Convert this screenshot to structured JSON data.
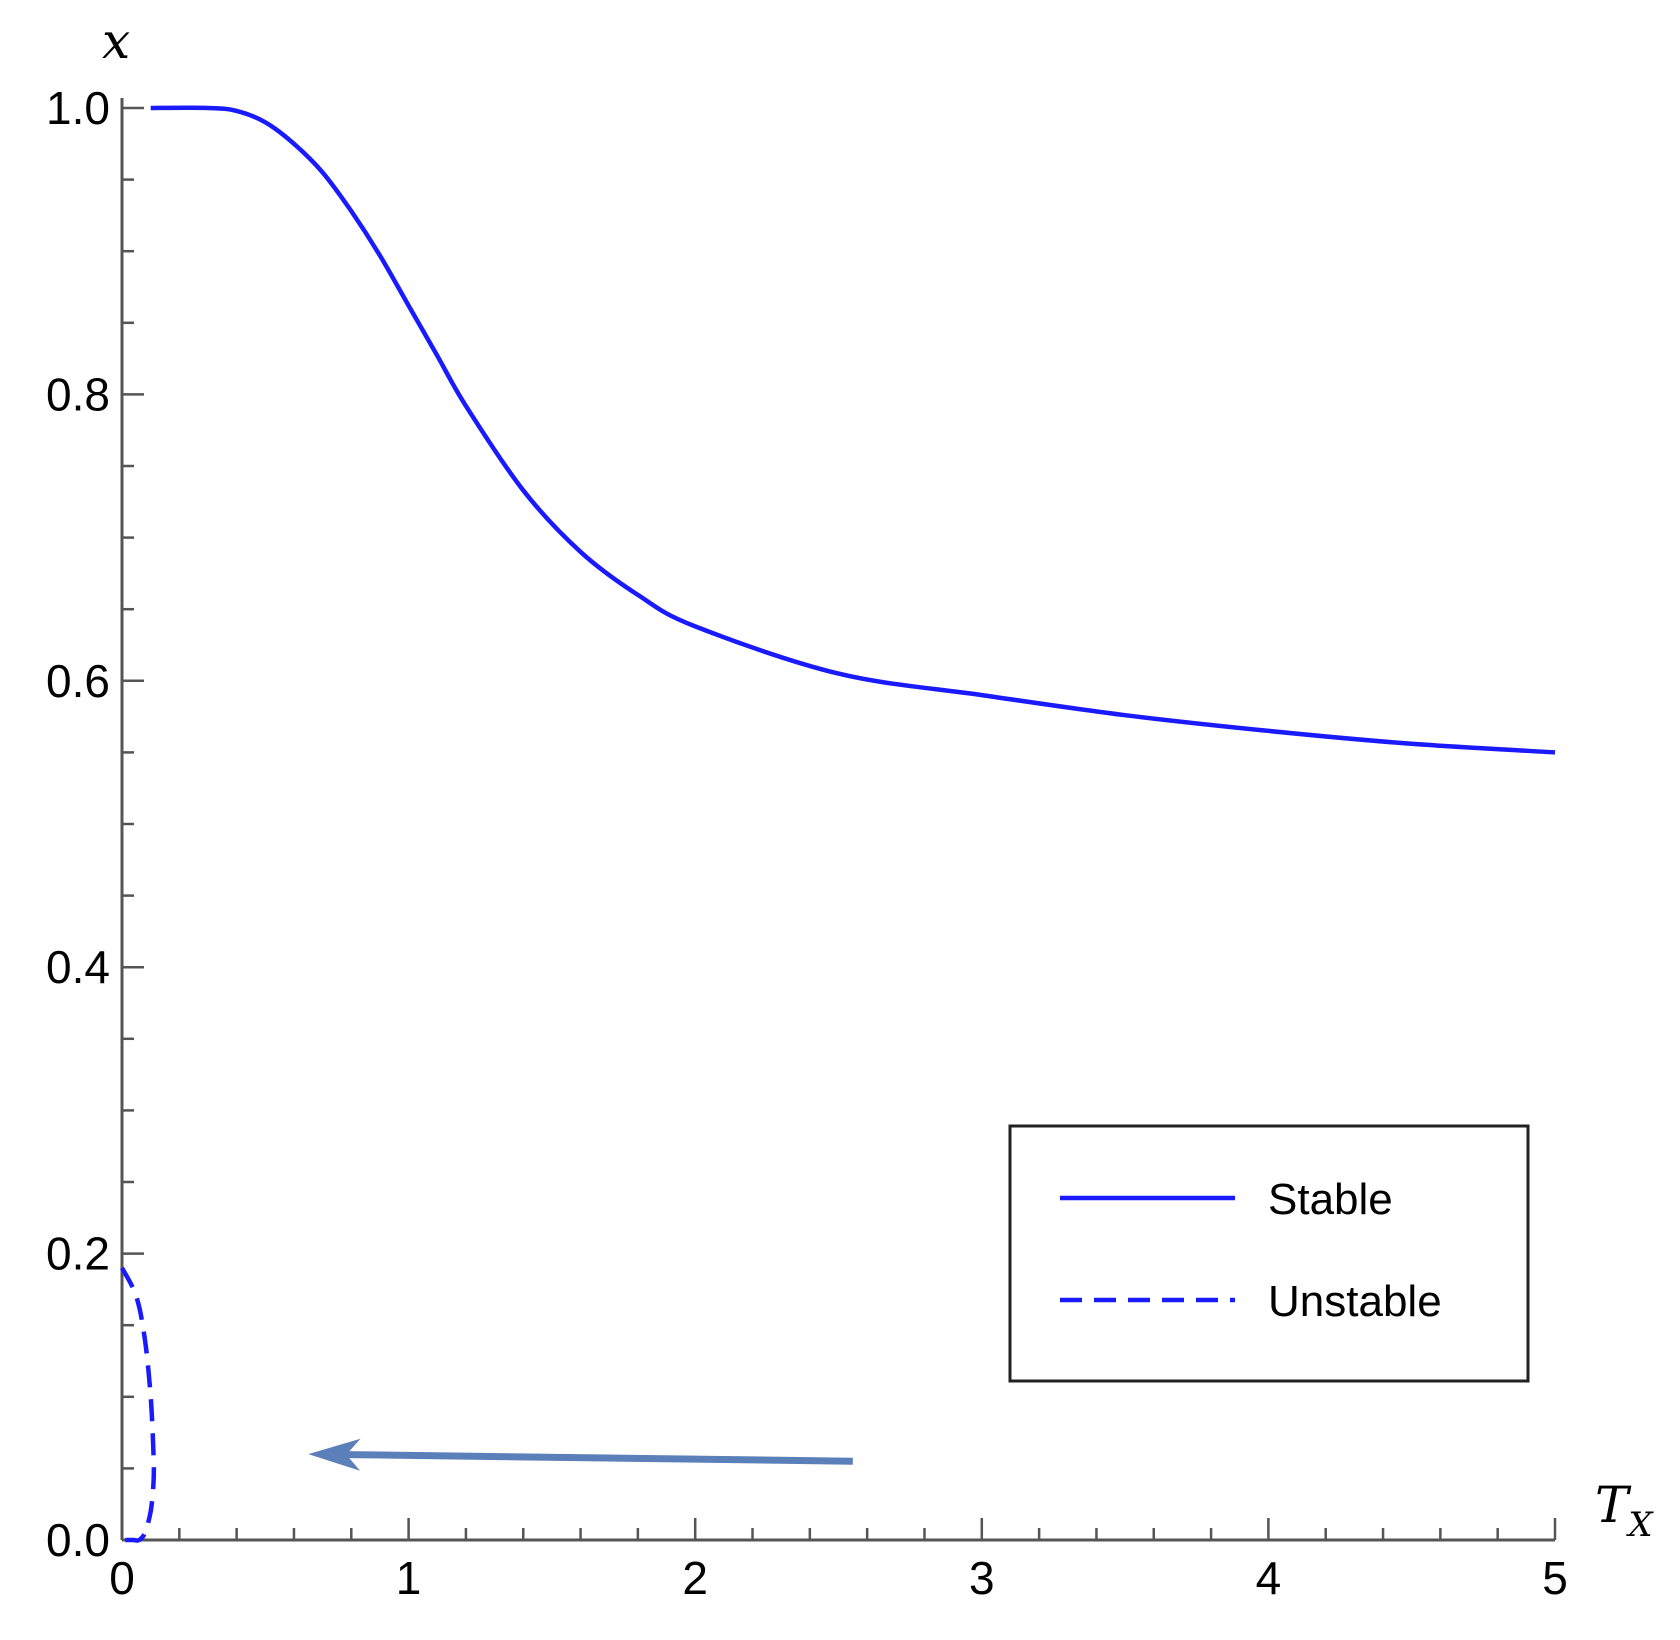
{
  "chart_data": {
    "type": "line",
    "xlabel": "T",
    "xlabel_sub": "X",
    "ylabel": "x",
    "xlim": [
      0,
      5
    ],
    "ylim": [
      0,
      1.0
    ],
    "x_ticks": [
      "0",
      "1",
      "2",
      "3",
      "4",
      "5"
    ],
    "y_ticks": [
      "0.0",
      "0.2",
      "0.4",
      "0.6",
      "0.8",
      "1.0"
    ],
    "legend_position": "bottom-right",
    "colors": {
      "line": "#1a1aff",
      "arrow": "#5b7fb8",
      "axis": "#555555"
    },
    "series": [
      {
        "name": "Stable",
        "style": "solid",
        "x": [
          0.1,
          0.3,
          0.4,
          0.5,
          0.6,
          0.7,
          0.8,
          0.9,
          1.0,
          1.1,
          1.2,
          1.4,
          1.6,
          1.8,
          2.0,
          2.5,
          3.0,
          3.5,
          4.0,
          4.5,
          5.0
        ],
        "y": [
          1.0,
          1.0,
          0.998,
          0.99,
          0.975,
          0.955,
          0.928,
          0.897,
          0.862,
          0.827,
          0.792,
          0.733,
          0.69,
          0.66,
          0.638,
          0.605,
          0.59,
          0.576,
          0.565,
          0.556,
          0.55
        ]
      },
      {
        "name": "Unstable",
        "style": "dashed",
        "x": [
          0.0,
          0.05,
          0.08,
          0.1,
          0.11,
          0.11,
          0.1,
          0.08,
          0.06,
          0.04,
          0.02,
          0.0
        ],
        "y": [
          0.19,
          0.17,
          0.14,
          0.1,
          0.06,
          0.04,
          0.02,
          0.005,
          0.0,
          0.0,
          0.0,
          0.0
        ]
      }
    ],
    "annotations": [
      {
        "type": "arrow",
        "from": [
          2.55,
          0.055
        ],
        "to": [
          0.65,
          0.06
        ]
      }
    ]
  }
}
